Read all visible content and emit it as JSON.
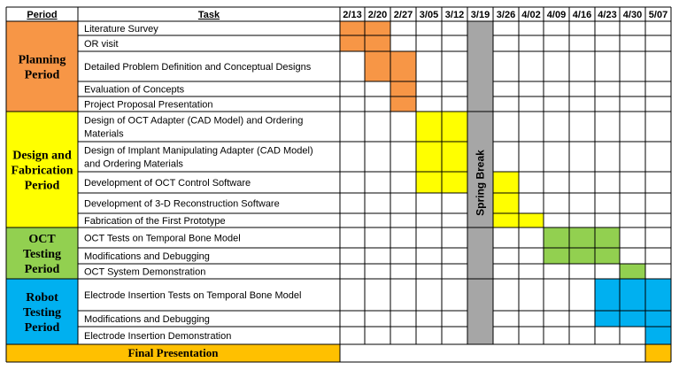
{
  "header": {
    "period_label": "Period",
    "task_label": "Task"
  },
  "weeks": [
    "2/13",
    "2/20",
    "2/27",
    "3/05",
    "3/12",
    "3/19",
    "3/26",
    "4/02",
    "4/09",
    "4/16",
    "4/23",
    "4/30",
    "5/07"
  ],
  "spring_break": {
    "label": "Spring Break",
    "week_index": 5,
    "color": "#a6a6a6"
  },
  "periods": [
    {
      "name_lines": [
        "Planning",
        "Period"
      ],
      "color": "#f79646",
      "tasks": [
        {
          "lines": [
            "Literature Survey"
          ],
          "start": 0,
          "end": 1
        },
        {
          "lines": [
            "OR visit"
          ],
          "start": 0,
          "end": 1
        },
        {
          "lines": [
            "Detailed Problem Definition and Conceptual Designs"
          ],
          "start": 1,
          "end": 2
        },
        {
          "lines": [
            "Evaluation of Concepts"
          ],
          "start": 2,
          "end": 2
        },
        {
          "lines": [
            "Project Proposal Presentation"
          ],
          "start": 2,
          "end": 2
        }
      ]
    },
    {
      "name_lines": [
        "Design and",
        "Fabrication",
        "Period"
      ],
      "color": "#ffff00",
      "tasks": [
        {
          "lines": [
            "Design of OCT Adapter (CAD Model) and Ordering",
            "Materials"
          ],
          "start": 3,
          "end": 4
        },
        {
          "lines": [
            "Design of Implant Manipulating Adapter (CAD Model)",
            "and Ordering Materials"
          ],
          "start": 3,
          "end": 4
        },
        {
          "lines": [
            "Development of OCT Control Software"
          ],
          "start": 3,
          "end": 6
        },
        {
          "lines": [
            "Development of 3-D Reconstruction Software"
          ],
          "start": 6,
          "end": 6
        },
        {
          "lines": [
            "Fabrication of the First Prototype"
          ],
          "start": 6,
          "end": 7
        }
      ]
    },
    {
      "name_lines": [
        "OCT",
        "Testing",
        "Period"
      ],
      "color": "#92d050",
      "tasks": [
        {
          "lines": [
            "OCT Tests on Temporal Bone Model"
          ],
          "start": 8,
          "end": 10
        },
        {
          "lines": [
            "Modifications and Debugging"
          ],
          "start": 8,
          "end": 10
        },
        {
          "lines": [
            "OCT System Demonstration"
          ],
          "start": 11,
          "end": 11
        }
      ]
    },
    {
      "name_lines": [
        "Robot",
        "Testing",
        "Period"
      ],
      "color": "#00b0f0",
      "tasks": [
        {
          "lines": [
            "Electrode Insertion Tests on Temporal Bone Model"
          ],
          "start": 10,
          "end": 12
        },
        {
          "lines": [
            "Modifications and Debugging"
          ],
          "start": 10,
          "end": 12
        },
        {
          "lines": [
            "Electrode Insertion Demonstration"
          ],
          "start": 12,
          "end": 12
        }
      ]
    }
  ],
  "final": {
    "label": "Final Presentation",
    "color": "#ffc000",
    "week_index": 12
  }
}
